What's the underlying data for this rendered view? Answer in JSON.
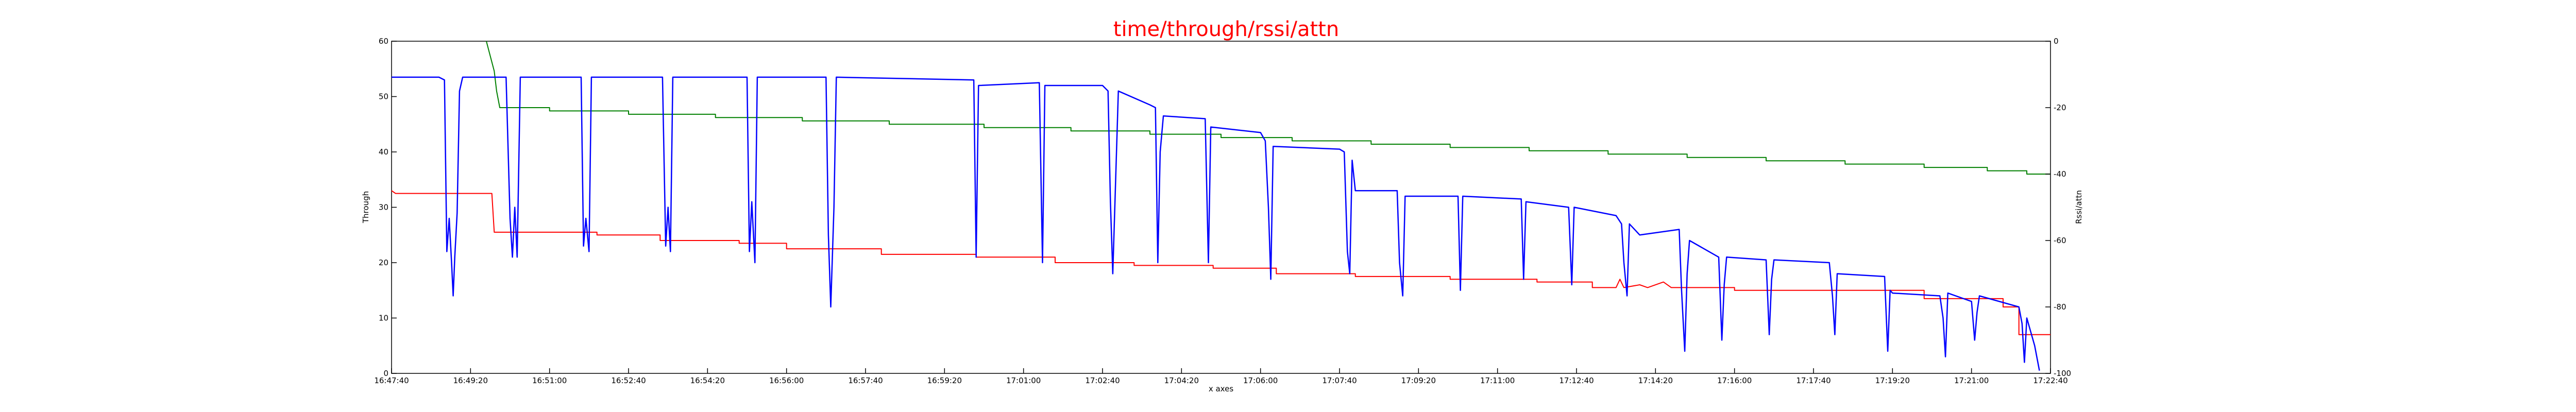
{
  "chart_data": {
    "type": "line",
    "title": "time/through/rssi/attn",
    "xlabel": "x axes",
    "ylabel": "Through",
    "y2label": "Rssi/attn",
    "xlim": [
      "16:47:40",
      "17:22:40"
    ],
    "ylim": [
      0,
      60
    ],
    "y2lim": [
      -100,
      0
    ],
    "grid": false,
    "colors": {
      "title": "#ff0000",
      "through": "#0000ff",
      "rssi": "#008000",
      "attn": "#ff0000"
    },
    "x_ticks": [
      "16:47:40",
      "16:49:20",
      "16:51:00",
      "16:52:40",
      "16:54:20",
      "16:56:00",
      "16:57:40",
      "16:59:20",
      "17:01:00",
      "17:02:40",
      "17:04:20",
      "17:06:00",
      "17:07:40",
      "17:09:20",
      "17:11:00",
      "17:12:40",
      "17:14:20",
      "17:16:00",
      "17:17:40",
      "17:19:20",
      "17:21:00",
      "17:22:40"
    ],
    "y_ticks": [
      0,
      10,
      20,
      30,
      40,
      50,
      60
    ],
    "y2_ticks": [
      -100,
      -80,
      -60,
      -40,
      -20,
      0
    ],
    "series": [
      {
        "name": "",
        "key": "through",
        "axis": "left",
        "points": [
          [
            "16:47:40",
            53.5
          ],
          [
            "16:48:40",
            53.5
          ],
          [
            "16:48:47",
            53.0
          ],
          [
            "16:48:50",
            22.0
          ],
          [
            "16:48:53",
            28.0
          ],
          [
            "16:48:56",
            20.0
          ],
          [
            "16:48:58",
            14.0
          ],
          [
            "16:49:00",
            21.0
          ],
          [
            "16:49:03",
            29.0
          ],
          [
            "16:49:06",
            51.0
          ],
          [
            "16:49:10",
            53.5
          ],
          [
            "16:50:05",
            53.5
          ],
          [
            "16:50:10",
            28.0
          ],
          [
            "16:50:13",
            21.0
          ],
          [
            "16:50:16",
            30.0
          ],
          [
            "16:50:19",
            21.0
          ],
          [
            "16:50:23",
            53.5
          ],
          [
            "16:51:40",
            53.5
          ],
          [
            "16:51:43",
            23.0
          ],
          [
            "16:51:46",
            28.0
          ],
          [
            "16:51:50",
            22.0
          ],
          [
            "16:51:53",
            53.5
          ],
          [
            "16:53:23",
            53.5
          ],
          [
            "16:53:27",
            23.0
          ],
          [
            "16:53:30",
            30.0
          ],
          [
            "16:53:33",
            22.0
          ],
          [
            "16:53:36",
            53.5
          ],
          [
            "16:55:10",
            53.5
          ],
          [
            "16:55:13",
            22.0
          ],
          [
            "16:55:16",
            31.0
          ],
          [
            "16:55:20",
            20.0
          ],
          [
            "16:55:23",
            53.5
          ],
          [
            "16:56:50",
            53.5
          ],
          [
            "16:56:53",
            25.0
          ],
          [
            "16:56:56",
            12.0
          ],
          [
            "16:57:00",
            30.0
          ],
          [
            "16:57:03",
            53.5
          ],
          [
            "16:59:57",
            53.0
          ],
          [
            "17:00:00",
            21.0
          ],
          [
            "17:00:03",
            52.0
          ],
          [
            "17:01:20",
            52.5
          ],
          [
            "17:01:24",
            20.0
          ],
          [
            "17:01:27",
            52.0
          ],
          [
            "17:02:40",
            52.0
          ],
          [
            "17:02:47",
            51.0
          ],
          [
            "17:02:50",
            31.0
          ],
          [
            "17:02:53",
            18.0
          ],
          [
            "17:02:56",
            32.0
          ],
          [
            "17:03:00",
            51.0
          ],
          [
            "17:03:40",
            48.5
          ],
          [
            "17:03:47",
            48.0
          ],
          [
            "17:03:50",
            20.0
          ],
          [
            "17:03:53",
            40.0
          ],
          [
            "17:03:57",
            46.5
          ],
          [
            "17:04:50",
            46.0
          ],
          [
            "17:04:54",
            20.0
          ],
          [
            "17:04:57",
            44.5
          ],
          [
            "17:06:00",
            43.5
          ],
          [
            "17:06:06",
            42.0
          ],
          [
            "17:06:10",
            30.0
          ],
          [
            "17:06:13",
            17.0
          ],
          [
            "17:06:16",
            41.0
          ],
          [
            "17:07:40",
            40.5
          ],
          [
            "17:07:46",
            40.0
          ],
          [
            "17:07:50",
            22.0
          ],
          [
            "17:07:53",
            18.0
          ],
          [
            "17:07:56",
            38.5
          ],
          [
            "17:08:00",
            33.0
          ],
          [
            "17:08:53",
            33.0
          ],
          [
            "17:08:56",
            20.0
          ],
          [
            "17:09:00",
            14.0
          ],
          [
            "17:09:03",
            32.0
          ],
          [
            "17:10:10",
            32.0
          ],
          [
            "17:10:13",
            15.0
          ],
          [
            "17:10:16",
            32.0
          ],
          [
            "17:11:30",
            31.5
          ],
          [
            "17:11:33",
            17.0
          ],
          [
            "17:11:36",
            31.0
          ],
          [
            "17:12:30",
            30.0
          ],
          [
            "17:12:34",
            16.0
          ],
          [
            "17:12:37",
            30.0
          ],
          [
            "17:13:30",
            28.5
          ],
          [
            "17:13:37",
            27.0
          ],
          [
            "17:13:40",
            20.0
          ],
          [
            "17:13:44",
            14.0
          ],
          [
            "17:13:47",
            27.0
          ],
          [
            "17:14:00",
            25.0
          ],
          [
            "17:14:50",
            26.0
          ],
          [
            "17:14:53",
            15.0
          ],
          [
            "17:14:57",
            4.0
          ],
          [
            "17:15:00",
            18.0
          ],
          [
            "17:15:03",
            24.0
          ],
          [
            "17:15:40",
            21.0
          ],
          [
            "17:15:44",
            6.0
          ],
          [
            "17:15:47",
            16.0
          ],
          [
            "17:15:50",
            21.0
          ],
          [
            "17:16:40",
            20.5
          ],
          [
            "17:16:44",
            7.0
          ],
          [
            "17:16:47",
            17.0
          ],
          [
            "17:16:50",
            20.5
          ],
          [
            "17:18:00",
            20.0
          ],
          [
            "17:18:04",
            14.0
          ],
          [
            "17:18:07",
            7.0
          ],
          [
            "17:18:10",
            18.0
          ],
          [
            "17:19:10",
            17.5
          ],
          [
            "17:19:14",
            4.0
          ],
          [
            "17:19:17",
            15.0
          ],
          [
            "17:19:20",
            14.5
          ],
          [
            "17:20:20",
            14.0
          ],
          [
            "17:20:24",
            10.0
          ],
          [
            "17:20:27",
            3.0
          ],
          [
            "17:20:30",
            14.5
          ],
          [
            "17:21:00",
            13.0
          ],
          [
            "17:21:04",
            6.0
          ],
          [
            "17:21:07",
            11.0
          ],
          [
            "17:21:10",
            14.0
          ],
          [
            "17:22:00",
            12.0
          ],
          [
            "17:22:04",
            9.0
          ],
          [
            "17:22:07",
            2.0
          ],
          [
            "17:22:10",
            10.0
          ],
          [
            "17:22:20",
            5.0
          ],
          [
            "17:22:26",
            0.5
          ]
        ]
      },
      {
        "name": "",
        "key": "rssi",
        "axis": "right",
        "points": [
          [
            "16:49:40",
            0
          ],
          [
            "16:49:50",
            -9
          ],
          [
            "16:49:53",
            -15
          ],
          [
            "16:49:57",
            -20
          ],
          [
            "16:51:00",
            -20
          ],
          [
            "16:51:00",
            -21
          ],
          [
            "16:52:40",
            -21
          ],
          [
            "16:52:40",
            -22
          ],
          [
            "16:54:30",
            -22
          ],
          [
            "16:54:30",
            -23
          ],
          [
            "16:56:20",
            -23
          ],
          [
            "16:56:20",
            -24
          ],
          [
            "16:58:10",
            -24
          ],
          [
            "16:58:10",
            -25
          ],
          [
            "17:00:10",
            -25
          ],
          [
            "17:00:10",
            -26
          ],
          [
            "17:02:00",
            -26
          ],
          [
            "17:02:00",
            -27
          ],
          [
            "17:03:40",
            -27
          ],
          [
            "17:03:40",
            -28
          ],
          [
            "17:05:10",
            -28
          ],
          [
            "17:05:10",
            -29
          ],
          [
            "17:06:40",
            -29
          ],
          [
            "17:06:40",
            -30
          ],
          [
            "17:08:20",
            -30
          ],
          [
            "17:08:20",
            -31
          ],
          [
            "17:10:00",
            -31
          ],
          [
            "17:10:00",
            -32
          ],
          [
            "17:11:40",
            -32
          ],
          [
            "17:11:40",
            -33
          ],
          [
            "17:13:20",
            -33
          ],
          [
            "17:13:20",
            -34
          ],
          [
            "17:15:00",
            -34
          ],
          [
            "17:15:00",
            -35
          ],
          [
            "17:16:40",
            -35
          ],
          [
            "17:16:40",
            -36
          ],
          [
            "17:18:20",
            -36
          ],
          [
            "17:18:20",
            -37
          ],
          [
            "17:20:00",
            -37
          ],
          [
            "17:20:00",
            -38
          ],
          [
            "17:21:20",
            -38
          ],
          [
            "17:21:20",
            -39
          ],
          [
            "17:22:10",
            -39
          ],
          [
            "17:22:10",
            -40
          ],
          [
            "17:22:40",
            -40
          ]
        ]
      },
      {
        "name": "",
        "key": "attn",
        "axis": "left",
        "points": [
          [
            "16:47:40",
            33
          ],
          [
            "16:47:45",
            32.5
          ],
          [
            "16:49:47",
            32.5
          ],
          [
            "16:49:50",
            25.5
          ],
          [
            "16:52:00",
            25.5
          ],
          [
            "16:52:00",
            25
          ],
          [
            "16:53:20",
            25
          ],
          [
            "16:53:20",
            24
          ],
          [
            "16:55:00",
            24
          ],
          [
            "16:55:00",
            23.5
          ],
          [
            "16:56:00",
            23.5
          ],
          [
            "16:56:00",
            22.5
          ],
          [
            "16:58:00",
            22.5
          ],
          [
            "16:58:00",
            21.5
          ],
          [
            "17:00:00",
            21.5
          ],
          [
            "17:00:00",
            21
          ],
          [
            "17:01:40",
            21
          ],
          [
            "17:01:40",
            20
          ],
          [
            "17:03:20",
            20
          ],
          [
            "17:03:20",
            19.5
          ],
          [
            "17:05:00",
            19.5
          ],
          [
            "17:05:00",
            19
          ],
          [
            "17:06:20",
            19
          ],
          [
            "17:06:20",
            18
          ],
          [
            "17:08:00",
            18
          ],
          [
            "17:08:00",
            17.5
          ],
          [
            "17:10:00",
            17.5
          ],
          [
            "17:10:00",
            17
          ],
          [
            "17:11:50",
            17
          ],
          [
            "17:11:50",
            16.5
          ],
          [
            "17:13:00",
            16.5
          ],
          [
            "17:13:00",
            15.5
          ],
          [
            "17:13:30",
            15.5
          ],
          [
            "17:13:35",
            17
          ],
          [
            "17:13:40",
            15.5
          ],
          [
            "17:14:00",
            16
          ],
          [
            "17:14:10",
            15.5
          ],
          [
            "17:14:30",
            16.5
          ],
          [
            "17:14:40",
            15.5
          ],
          [
            "17:16:00",
            15.5
          ],
          [
            "17:16:00",
            15
          ],
          [
            "17:20:00",
            15
          ],
          [
            "17:20:00",
            13.5
          ],
          [
            "17:21:40",
            13.5
          ],
          [
            "17:21:40",
            12
          ],
          [
            "17:22:00",
            12
          ],
          [
            "17:22:00",
            7
          ],
          [
            "17:22:40",
            7
          ]
        ]
      }
    ]
  }
}
